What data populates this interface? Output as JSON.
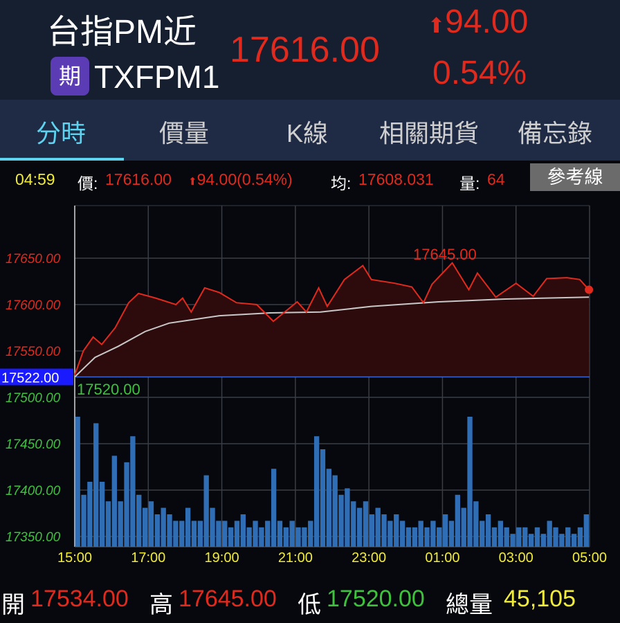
{
  "header": {
    "title": "台指PM近",
    "badge": "期",
    "code": "TXFPM1",
    "price": "17616.00",
    "change": "94.00",
    "percent": "0.54%",
    "up_icon": "up-arrow-icon"
  },
  "tabs": [
    {
      "label": "分時",
      "active": true
    },
    {
      "label": "價量"
    },
    {
      "label": "K線"
    },
    {
      "label": "相關期貨"
    },
    {
      "label": "備忘錄"
    }
  ],
  "info": {
    "time": "04:59",
    "price_label": "價:",
    "price": "17616.00",
    "change": "94.00(0.54%)",
    "avg_label": "均:",
    "avg": "17608.031",
    "vol_label": "量:",
    "vol": "64",
    "ref_button": "參考線"
  },
  "footer": {
    "open_label": "開",
    "open": "17534.00",
    "high_label": "高",
    "high": "17645.00",
    "low_label": "低",
    "low": "17520.00",
    "total_label": "總量",
    "total": "45,105"
  },
  "colors": {
    "up": "#e02a1e",
    "down": "#3ec23e",
    "accent": "#5ed3ef",
    "volume": "#2f6db5",
    "avg_line": "#c8c8c8",
    "reference": "#1a1aff"
  },
  "chart_data": {
    "type": "line",
    "reference_price": 17522,
    "reference_label": "17522.00",
    "high_label": "17645.00",
    "low_label": "17520.00",
    "y_ticks": [
      "17650.00",
      "17600.00",
      "17550.00",
      "17500.00",
      "17450.00",
      "17400.00",
      "17350.00"
    ],
    "x_ticks": [
      "15:00",
      "17:00",
      "19:00",
      "21:00",
      "23:00",
      "01:00",
      "03:00",
      "05:00"
    ],
    "price_series": [
      [
        "15:00",
        17524
      ],
      [
        "15:14",
        17550
      ],
      [
        "15:30",
        17565
      ],
      [
        "15:44",
        17557
      ],
      [
        "16:06",
        17575
      ],
      [
        "16:28",
        17602
      ],
      [
        "16:44",
        17612
      ],
      [
        "17:12",
        17607
      ],
      [
        "17:45",
        17600
      ],
      [
        "17:56",
        17607
      ],
      [
        "18:10",
        17592
      ],
      [
        "18:32",
        17618
      ],
      [
        "18:56",
        17613
      ],
      [
        "19:24",
        17602
      ],
      [
        "19:57",
        17600
      ],
      [
        "20:24",
        17582
      ],
      [
        "21:03",
        17603
      ],
      [
        "21:18",
        17592
      ],
      [
        "21:38",
        17618
      ],
      [
        "21:52",
        17598
      ],
      [
        "22:20",
        17627
      ],
      [
        "22:50",
        17642
      ],
      [
        "23:04",
        17627
      ],
      [
        "23:42",
        17623
      ],
      [
        "00:10",
        17619
      ],
      [
        "00:29",
        17602
      ],
      [
        "00:43",
        17622
      ],
      [
        "01:16",
        17645
      ],
      [
        "01:43",
        17616
      ],
      [
        "01:57",
        17634
      ],
      [
        "02:27",
        17608
      ],
      [
        "03:00",
        17623
      ],
      [
        "03:28",
        17609
      ],
      [
        "03:50",
        17628
      ],
      [
        "04:23",
        17629
      ],
      [
        "04:44",
        17627
      ],
      [
        "04:59",
        17616
      ]
    ],
    "avg_series": [
      [
        "15:00",
        17522
      ],
      [
        "15:33",
        17543
      ],
      [
        "16:11",
        17555
      ],
      [
        "16:55",
        17571
      ],
      [
        "17:34",
        17580
      ],
      [
        "18:56",
        17588
      ],
      [
        "20:18",
        17591
      ],
      [
        "21:41",
        17592
      ],
      [
        "23:04",
        17598
      ],
      [
        "00:54",
        17603
      ],
      [
        "02:42",
        17606
      ],
      [
        "04:59",
        17608
      ]
    ],
    "volume_relative": [
      1.0,
      0.4,
      0.5,
      0.95,
      0.5,
      0.35,
      0.7,
      0.35,
      0.65,
      0.85,
      0.4,
      0.3,
      0.35,
      0.25,
      0.3,
      0.25,
      0.2,
      0.2,
      0.3,
      0.2,
      0.2,
      0.55,
      0.3,
      0.2,
      0.2,
      0.15,
      0.2,
      0.25,
      0.15,
      0.2,
      0.15,
      0.2,
      0.6,
      0.2,
      0.15,
      0.2,
      0.15,
      0.15,
      0.2,
      0.85,
      0.75,
      0.6,
      0.55,
      0.4,
      0.45,
      0.35,
      0.3,
      0.35,
      0.25,
      0.3,
      0.25,
      0.2,
      0.25,
      0.2,
      0.15,
      0.15,
      0.2,
      0.15,
      0.2,
      0.15,
      0.25,
      0.2,
      0.4,
      0.3,
      1.0,
      0.35,
      0.2,
      0.25,
      0.15,
      0.2,
      0.15,
      0.1,
      0.15,
      0.15,
      0.1,
      0.15,
      0.1,
      0.2,
      0.15,
      0.1,
      0.15,
      0.1,
      0.15,
      0.25
    ]
  }
}
